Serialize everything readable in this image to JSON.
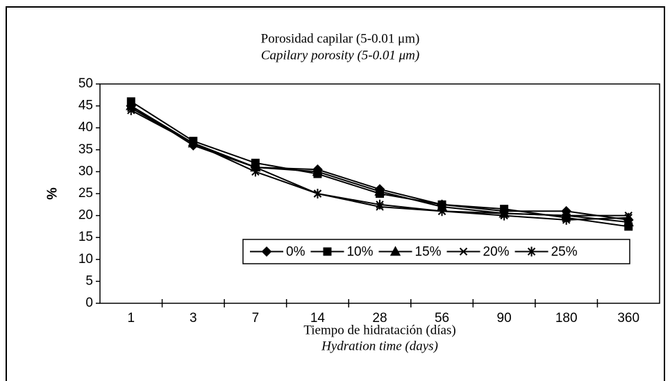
{
  "chart_data": {
    "type": "line",
    "title": "Porosidad capilar (5-0.01 μm)",
    "subtitle": "Capilary porosity (5-0.01 μm)",
    "x_label": "Tiempo de hidratación (días)",
    "x_label_en": "Hydration time (days)",
    "y_label": "%",
    "categories": [
      "1",
      "3",
      "7",
      "14",
      "28",
      "56",
      "90",
      "180",
      "360"
    ],
    "ylim": [
      0,
      50
    ],
    "yticks": [
      0,
      5,
      10,
      15,
      20,
      25,
      30,
      35,
      40,
      45,
      50
    ],
    "legend": "bottom-right",
    "series": [
      {
        "name": "0%",
        "color": "#000000",
        "marker": "diamond",
        "values": [
          45,
          36,
          31,
          30.5,
          26,
          22.5,
          21,
          21,
          19
        ]
      },
      {
        "name": "10%",
        "color": "#000000",
        "marker": "square",
        "values": [
          46,
          37,
          32,
          29.5,
          25,
          22.5,
          21.5,
          19.5,
          17.5
        ]
      },
      {
        "name": "15%",
        "color": "#000000",
        "marker": "triangle",
        "values": [
          45,
          36.5,
          31,
          30,
          25.5,
          22,
          20.5,
          20,
          18.5
        ]
      },
      {
        "name": "20%",
        "color": "#000000",
        "marker": "x",
        "values": [
          44.5,
          36.5,
          31,
          25,
          22,
          21,
          20.5,
          20,
          20
        ]
      },
      {
        "name": "25%",
        "color": "#000000",
        "marker": "asterisk",
        "values": [
          44,
          36.5,
          30,
          25,
          22.5,
          21,
          20,
          19,
          19.5
        ]
      }
    ]
  }
}
